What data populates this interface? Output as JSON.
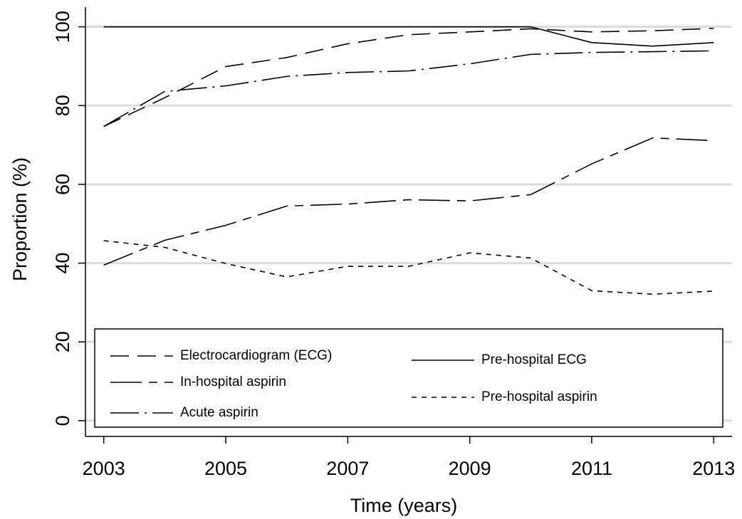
{
  "chart_data": {
    "type": "line",
    "x": [
      2003,
      2004,
      2005,
      2006,
      2007,
      2008,
      2009,
      2010,
      2011,
      2012,
      2013
    ],
    "series": [
      {
        "name": "Electrocardiogram (ECG)",
        "color": "#000000",
        "dash": "26 12",
        "values": [
          74.7,
          82,
          89.9,
          92.2,
          95.7,
          98,
          98.7,
          99.5,
          98.7,
          99,
          99.6
        ]
      },
      {
        "name": "In-hospital aspirin",
        "color": "#000000",
        "dash": "44 10 12 10",
        "values": [
          39.5,
          45.8,
          49.6,
          54.5,
          55,
          56.1,
          55.8,
          57.4,
          65.2,
          71.8,
          71.1
        ]
      },
      {
        "name": "Acute aspirin",
        "color": "#000000",
        "dash": "40 8 3 8",
        "values": [
          74.7,
          83.6,
          85,
          87.4,
          88.4,
          88.8,
          90.6,
          93,
          93.5,
          93.7,
          93.9
        ]
      },
      {
        "name": "Pre-hospital ECG",
        "color": "#000000",
        "dash": "none",
        "values": [
          100,
          100,
          100,
          100,
          100,
          100,
          100,
          100,
          96,
          95.1,
          96
        ]
      },
      {
        "name": "Pre-hospital aspirin",
        "color": "#000000",
        "dash": "7 7",
        "values": [
          45.7,
          44,
          39.9,
          36.5,
          39.2,
          39.2,
          42.6,
          41.3,
          33,
          32.1,
          32.9
        ]
      }
    ],
    "xlabel": "Time (years)",
    "ylabel": "Proportion (%)",
    "xlim": [
      2002.7,
      2013.3
    ],
    "ylim": [
      -4,
      105
    ],
    "xticks": [
      2003,
      2005,
      2007,
      2009,
      2011,
      2013
    ],
    "yticks": [
      0,
      20,
      40,
      60,
      80,
      100
    ],
    "grid": true,
    "legend": "bottom"
  }
}
